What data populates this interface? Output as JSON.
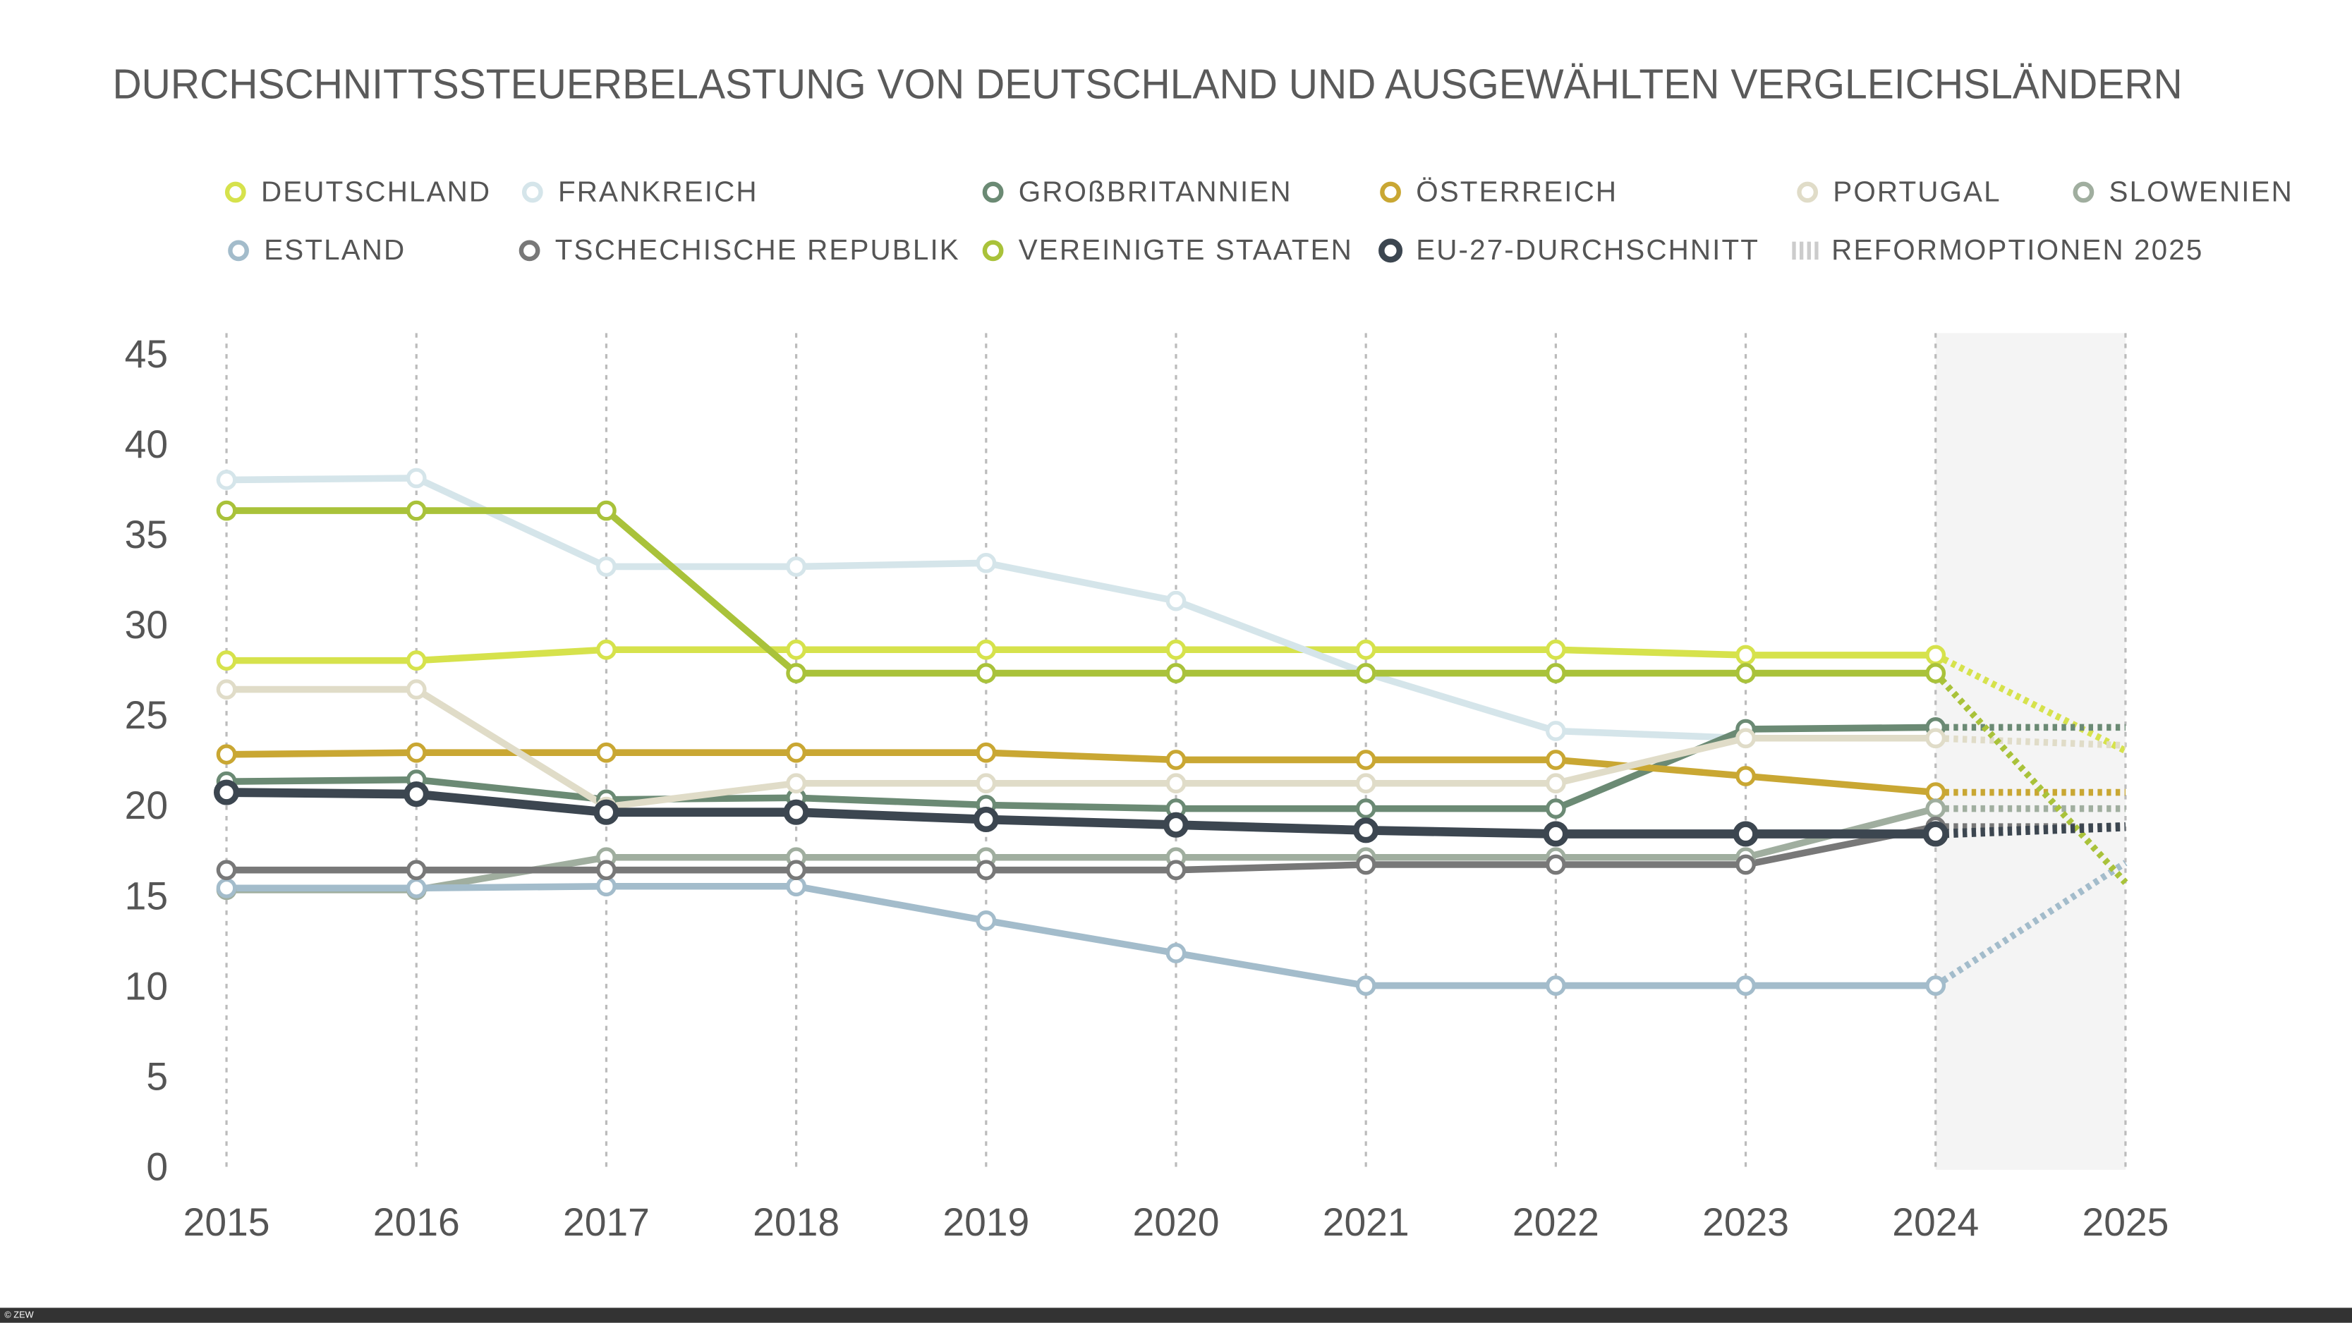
{
  "chart_data": {
    "type": "line",
    "title": "DURCHSCHNITTSSTEUERBELASTUNG VON DEUTSCHLAND UND AUSGEWÄHLTEN VERGLEICHSLÄNDERN",
    "x": [
      2015,
      2016,
      2017,
      2018,
      2019,
      2020,
      2021,
      2022,
      2023,
      2024,
      2025
    ],
    "xlim": [
      2015,
      2025
    ],
    "xticks": [
      2015,
      2016,
      2017,
      2018,
      2019,
      2020,
      2021,
      2022,
      2023,
      2024,
      2025
    ],
    "ylim": [
      0,
      45
    ],
    "yticks": [
      0,
      5,
      10,
      15,
      20,
      25,
      30,
      35,
      40,
      45
    ],
    "shaded_xrange": [
      2024,
      2025
    ],
    "legend_note": "REFORMOPTIONEN 2025",
    "source": "© ZEW",
    "series": [
      {
        "name": "DEUTSCHLAND",
        "color": "#d6e24c",
        "values": [
          28.2,
          28.2,
          28.8,
          28.8,
          28.8,
          28.8,
          28.8,
          28.8,
          28.5,
          28.5,
          23.2
        ]
      },
      {
        "name": "FRANKREICH",
        "color": "#d5e5ea",
        "values": [
          38.2,
          38.3,
          33.4,
          33.4,
          33.6,
          31.5,
          27.5,
          24.3,
          23.9,
          23.9,
          null
        ]
      },
      {
        "name": "GROßBRITANNIEN",
        "color": "#6b8a74",
        "values": [
          21.5,
          21.6,
          20.5,
          20.6,
          20.2,
          20.0,
          20.0,
          20.0,
          24.4,
          24.5,
          24.5
        ]
      },
      {
        "name": "ÖSTERREICH",
        "color": "#c9a733",
        "values": [
          23.0,
          23.1,
          23.1,
          23.1,
          23.1,
          22.7,
          22.7,
          22.7,
          21.8,
          20.9,
          20.9
        ]
      },
      {
        "name": "PORTUGAL",
        "color": "#e0dcc8",
        "values": [
          26.6,
          26.6,
          20.1,
          21.4,
          21.4,
          21.4,
          21.4,
          21.4,
          23.9,
          23.9,
          23.5
        ]
      },
      {
        "name": "SLOWENIEN",
        "color": "#a0ae9f",
        "values": [
          15.5,
          15.5,
          17.3,
          17.3,
          17.3,
          17.3,
          17.3,
          17.3,
          17.3,
          20.0,
          20.0
        ]
      },
      {
        "name": "ESTLAND",
        "color": "#a3bccb",
        "values": [
          15.6,
          15.6,
          15.7,
          15.7,
          13.8,
          12.0,
          10.2,
          10.2,
          10.2,
          10.2,
          17.0
        ]
      },
      {
        "name": "TSCHECHISCHE REPUBLIK",
        "color": "#787878",
        "values": [
          16.6,
          16.6,
          16.6,
          16.6,
          16.6,
          16.6,
          16.9,
          16.9,
          16.9,
          19.0,
          19.0
        ]
      },
      {
        "name": "VEREINIGTE STAATEN",
        "color": "#a9c23a",
        "values": [
          36.5,
          36.5,
          36.5,
          27.5,
          27.5,
          27.5,
          27.5,
          27.5,
          27.5,
          27.5,
          15.9
        ]
      },
      {
        "name": "EU-27-DURCHSCHNITT",
        "color": "#3c4650",
        "values": [
          20.9,
          20.8,
          19.8,
          19.8,
          19.4,
          19.1,
          18.8,
          18.6,
          18.6,
          18.6,
          19.0
        ]
      }
    ]
  }
}
